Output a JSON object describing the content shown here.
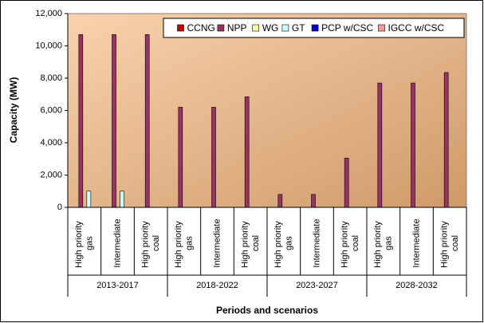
{
  "chart_data": {
    "type": "bar",
    "y_label": "Capacity (MW)",
    "x_label": "Periods and scenarios",
    "categories": [
      "High priority gas",
      "Intermediate",
      "High priority coal",
      "High priority gas",
      "Intermediate",
      "High priority coal",
      "High priority gas",
      "Intermediate",
      "High priority coal",
      "High priority gas",
      "Intermediate",
      "High priority coal"
    ],
    "periods": [
      "2013-2017",
      "2018-2022",
      "2023-2027",
      "2028-2032"
    ],
    "series": [
      {
        "name": "CCNG",
        "color": "#cc0000",
        "values": [
          0,
          0,
          0,
          0,
          0,
          0,
          0,
          0,
          0,
          0,
          0,
          0
        ]
      },
      {
        "name": "NPP",
        "color": "#993366",
        "values": [
          10700,
          10700,
          10700,
          6200,
          6200,
          6850,
          800,
          800,
          3050,
          7700,
          7700,
          8350
        ]
      },
      {
        "name": "WG",
        "color": "#ffff99",
        "values": [
          0,
          0,
          0,
          0,
          0,
          0,
          0,
          0,
          0,
          0,
          0,
          0
        ]
      },
      {
        "name": "GT",
        "color": "#ccffff",
        "values": [
          1000,
          1000,
          0,
          0,
          0,
          0,
          0,
          0,
          0,
          0,
          0,
          0
        ]
      },
      {
        "name": "PCP w/CSC",
        "color": "#0000cc",
        "values": [
          0,
          0,
          0,
          0,
          0,
          0,
          0,
          0,
          0,
          0,
          0,
          0
        ]
      },
      {
        "name": "IGCC w/CSC",
        "color": "#ff9999",
        "values": [
          0,
          0,
          0,
          0,
          0,
          0,
          0,
          0,
          0,
          0,
          0,
          0
        ]
      }
    ],
    "ylim": [
      0,
      12000
    ],
    "yticks": [
      0,
      {
        "value": 2000,
        "label": "2,000"
      },
      {
        "value": 4000,
        "label": "4,000"
      },
      {
        "value": 6000,
        "label": "6,000"
      },
      {
        "value": 8000,
        "label": "8,000"
      },
      {
        "value": 10000,
        "label": "10,000"
      },
      {
        "value": 12000,
        "label": "12,000"
      }
    ],
    "grid": false,
    "legend": "top-right"
  }
}
